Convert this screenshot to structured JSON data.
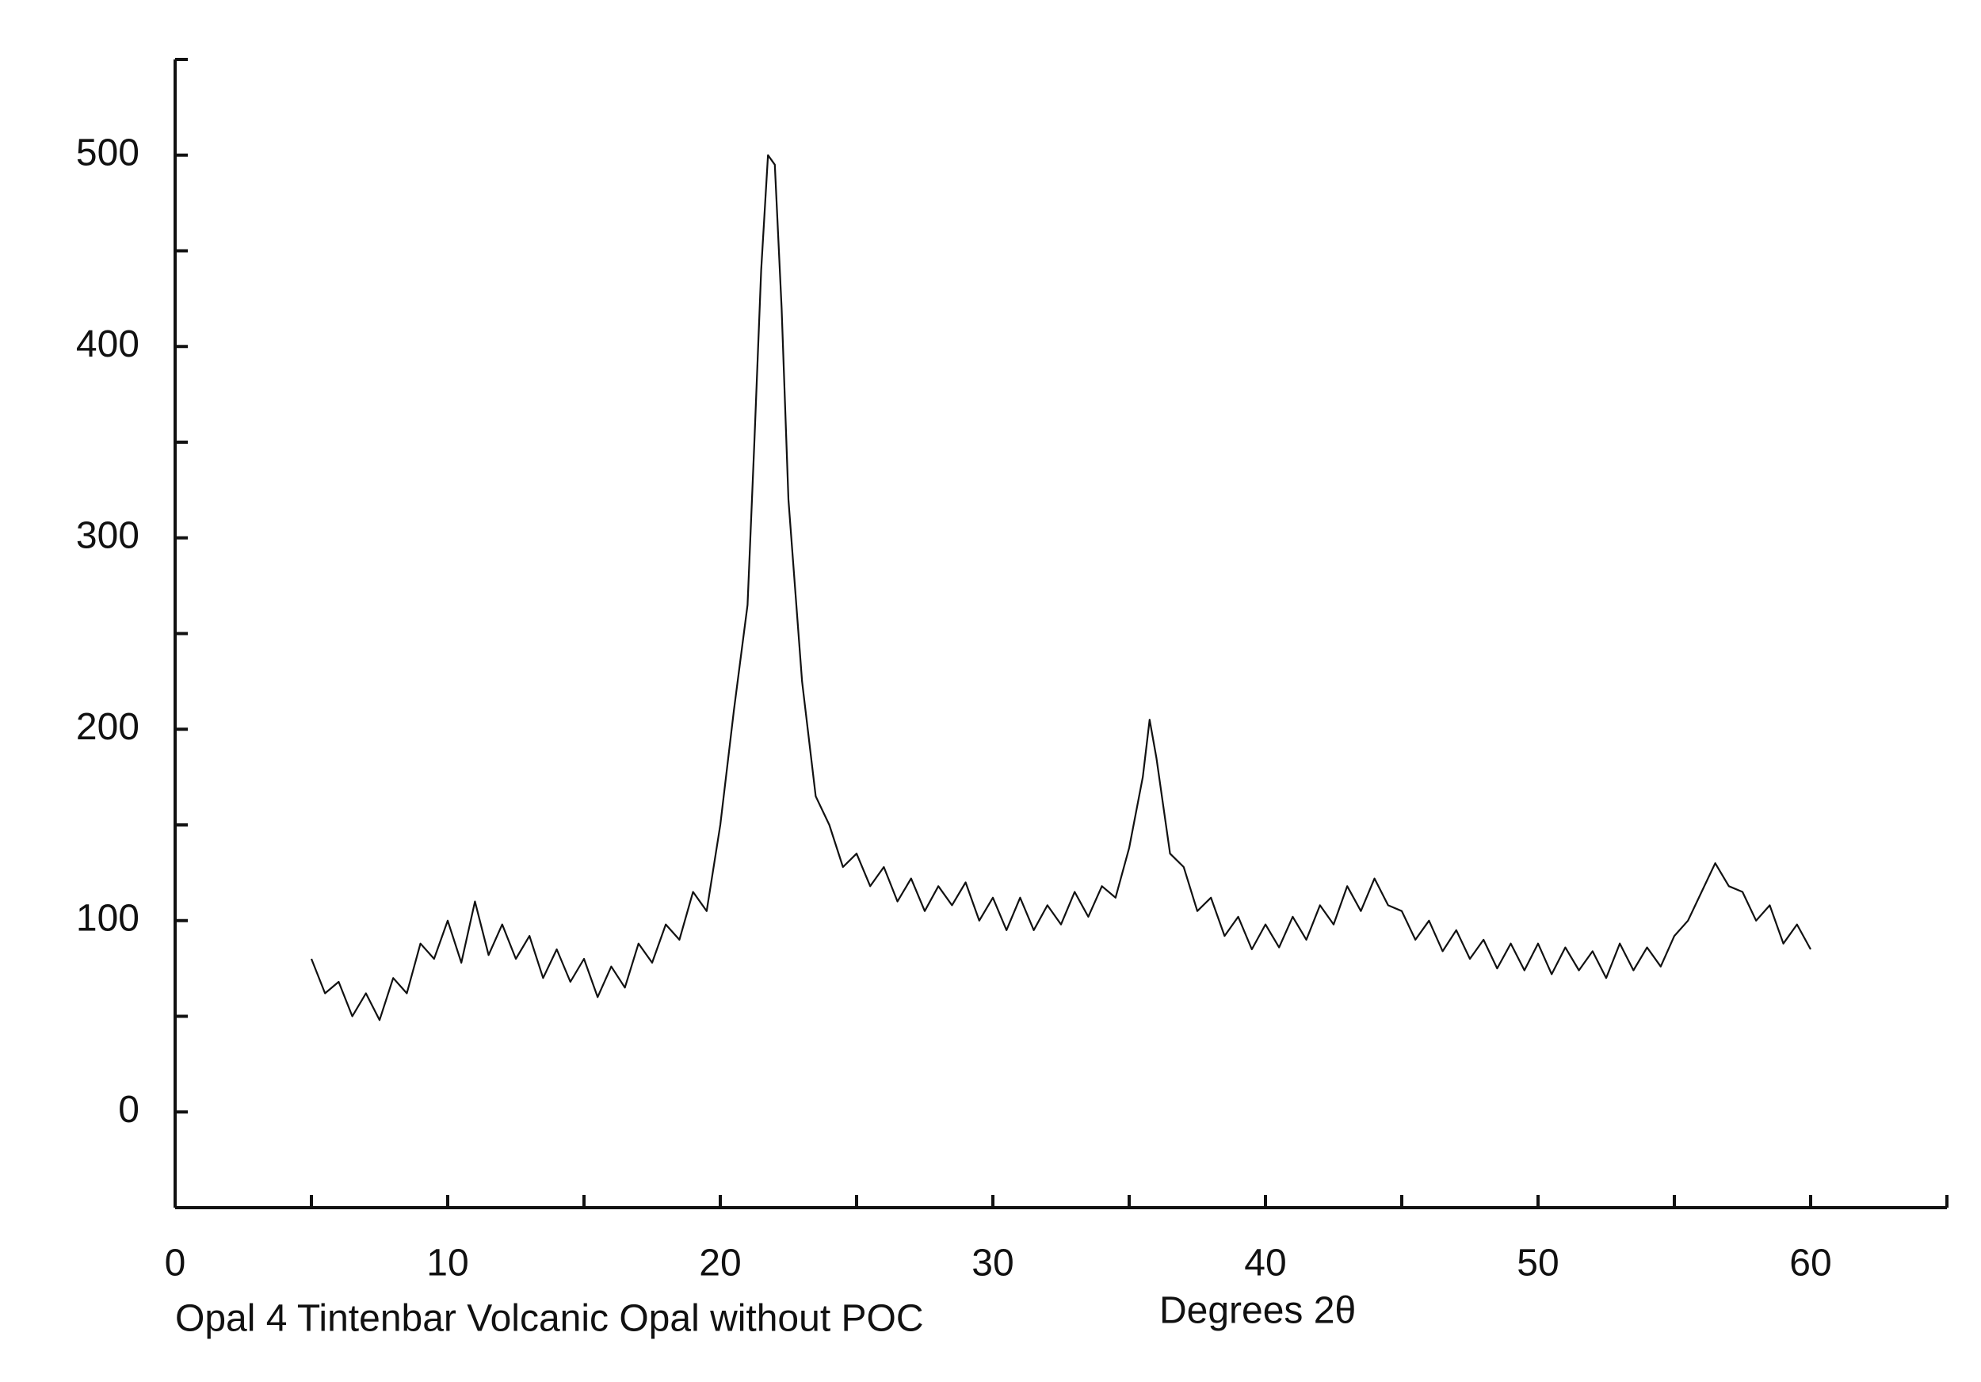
{
  "chart_data": {
    "type": "line",
    "xlabel": "Degrees 2θ",
    "caption": "Opal 4 Tintenbar Volcanic Opal without POC",
    "xlim": [
      0,
      65
    ],
    "ylim": [
      -50,
      550
    ],
    "xticks": [
      0,
      10,
      20,
      30,
      40,
      50,
      60
    ],
    "yticks": [
      0,
      100,
      200,
      300,
      400,
      500
    ],
    "xminorticks": [
      5,
      15,
      25,
      35,
      45,
      55,
      65
    ],
    "yminorticks": [
      50,
      150,
      250,
      350,
      450,
      550
    ],
    "grid": false,
    "x": [
      5,
      5.5,
      6,
      6.5,
      7,
      7.5,
      8,
      8.5,
      9,
      9.5,
      10,
      10.5,
      11,
      11.5,
      12,
      12.5,
      13,
      13.5,
      14,
      14.5,
      15,
      15.5,
      16,
      16.5,
      17,
      17.5,
      18,
      18.5,
      19,
      19.5,
      20,
      20.5,
      21,
      21.25,
      21.5,
      21.75,
      22,
      22.25,
      22.5,
      23,
      23.5,
      24,
      24.5,
      25,
      25.5,
      26,
      26.5,
      27,
      27.5,
      28,
      28.5,
      29,
      29.5,
      30,
      30.5,
      31,
      31.5,
      32,
      32.5,
      33,
      33.5,
      34,
      34.5,
      35,
      35.5,
      35.75,
      36,
      36.5,
      37,
      37.5,
      38,
      38.5,
      39,
      39.5,
      40,
      40.5,
      41,
      41.5,
      42,
      42.5,
      43,
      43.5,
      44,
      44.5,
      45,
      45.5,
      46,
      46.5,
      47,
      47.5,
      48,
      48.5,
      49,
      49.5,
      50,
      50.5,
      51,
      51.5,
      52,
      52.5,
      53,
      53.5,
      54,
      54.5,
      55,
      55.5,
      56,
      56.5,
      57,
      57.5,
      58,
      58.5,
      59,
      59.5,
      60
    ],
    "series": [
      {
        "name": "Opal 4",
        "color": "#111111",
        "values": [
          80,
          62,
          68,
          50,
          62,
          48,
          70,
          62,
          88,
          80,
          100,
          78,
          110,
          82,
          98,
          80,
          92,
          70,
          85,
          68,
          80,
          60,
          76,
          65,
          88,
          78,
          98,
          90,
          115,
          105,
          150,
          210,
          265,
          350,
          440,
          500,
          495,
          420,
          320,
          225,
          165,
          150,
          128,
          135,
          118,
          128,
          110,
          122,
          105,
          118,
          108,
          120,
          100,
          112,
          95,
          112,
          95,
          108,
          98,
          115,
          102,
          118,
          112,
          138,
          175,
          205,
          185,
          135,
          128,
          105,
          112,
          92,
          102,
          85,
          98,
          86,
          102,
          90,
          108,
          98,
          118,
          105,
          122,
          108,
          105,
          90,
          100,
          84,
          95,
          80,
          90,
          75,
          88,
          74,
          88,
          72,
          86,
          74,
          84,
          70,
          88,
          74,
          86,
          76,
          92,
          100,
          115,
          130,
          118,
          115,
          100,
          108,
          88,
          98,
          85
        ]
      }
    ]
  }
}
